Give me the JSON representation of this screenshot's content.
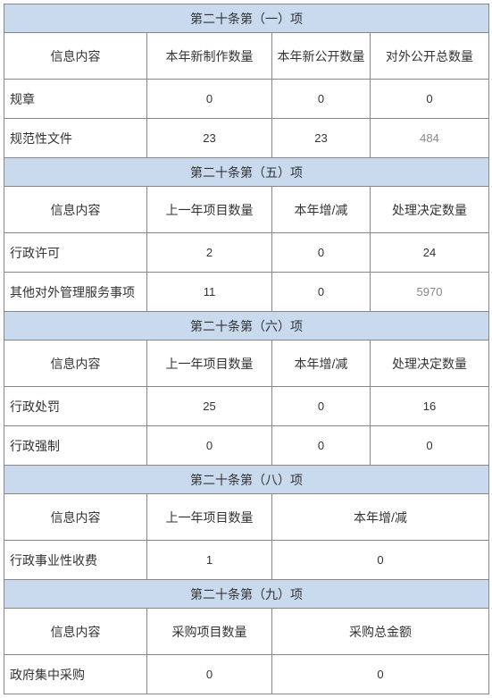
{
  "colors": {
    "section_bg": "#c9daee",
    "border": "#888888",
    "text": "#333333",
    "muted": "#888888",
    "bg": "#ffffff"
  },
  "sections": [
    {
      "title": "第二十条第（一）项",
      "headers": [
        "信息内容",
        "本年新制作数量",
        "本年新公开数量",
        "对外公开总数量"
      ],
      "rows": [
        {
          "label": "规章",
          "vals": [
            "0",
            "0",
            "0"
          ],
          "muted": [
            false,
            false,
            false
          ]
        },
        {
          "label": "规范性文件",
          "vals": [
            "23",
            "23",
            "484"
          ],
          "muted": [
            false,
            false,
            true
          ]
        }
      ]
    },
    {
      "title": "第二十条第（五）项",
      "headers": [
        "信息内容",
        "上一年项目数量",
        "本年增/减",
        "处理决定数量"
      ],
      "rows": [
        {
          "label": "行政许可",
          "vals": [
            "2",
            "0",
            "24"
          ],
          "muted": [
            false,
            false,
            false
          ]
        },
        {
          "label": "其他对外管理服务事项",
          "vals": [
            "11",
            "0",
            "5970"
          ],
          "muted": [
            false,
            false,
            true
          ]
        }
      ]
    },
    {
      "title": "第二十条第（六）项",
      "headers": [
        "信息内容",
        "上一年项目数量",
        "本年增/减",
        "处理决定数量"
      ],
      "rows": [
        {
          "label": "行政处罚",
          "vals": [
            "25",
            "0",
            "16"
          ],
          "muted": [
            false,
            false,
            false
          ]
        },
        {
          "label": "行政强制",
          "vals": [
            "0",
            "0",
            "0"
          ],
          "muted": [
            false,
            false,
            false
          ]
        }
      ]
    },
    {
      "title": "第二十条第（八）项",
      "headers3": [
        "信息内容",
        "上一年项目数量",
        "本年增/减"
      ],
      "rows3": [
        {
          "label": "行政事业性收费",
          "vals": [
            "1",
            "0"
          ]
        }
      ]
    },
    {
      "title": "第二十条第（九）项",
      "headers3": [
        "信息内容",
        "采购项目数量",
        "采购总金额"
      ],
      "rows3": [
        {
          "label": "政府集中采购",
          "vals": [
            "0",
            "0"
          ]
        }
      ]
    }
  ]
}
